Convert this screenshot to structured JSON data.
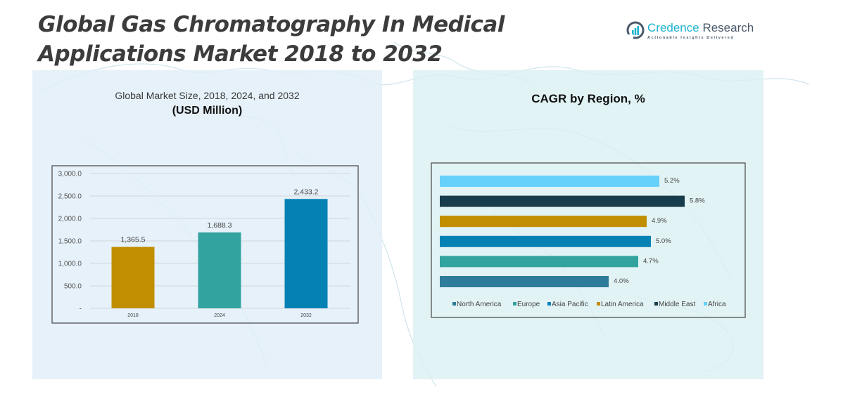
{
  "header": {
    "title_line1": "Global Gas Chromatography In Medical",
    "title_line2": "Applications Market 2018 to 2032",
    "logo_name_part1": "Credence",
    "logo_name_part2": " Research",
    "logo_tagline": "Actionable Insights Delivered"
  },
  "left_panel": {
    "subtitle": "Global Market Size, 2018, 2024, and 2032",
    "unit": "(USD Million)"
  },
  "right_panel": {
    "title": "CAGR by Region, %"
  },
  "colors": {
    "gold": "#c08e00",
    "teal": "#33a3a0",
    "blue": "#0581b4",
    "dark_navy": "#173c4c",
    "light_blue": "#66d1fa",
    "steel_blue": "#2e7c9a"
  },
  "chart_data": [
    {
      "type": "bar",
      "title": "Global Market Size, 2018, 2024, and 2032",
      "subtitle": "(USD Million)",
      "xlabel": "",
      "ylabel": "",
      "categories": [
        "2018",
        "2024",
        "2032"
      ],
      "values": [
        1365.5,
        1688.3,
        2433.2
      ],
      "data_labels": [
        "1,365.5",
        "1,688.3",
        "2,433.2"
      ],
      "bar_colors": [
        "#c08e00",
        "#33a3a0",
        "#0581b4"
      ],
      "ylim": [
        0,
        3000
      ],
      "yticks": [
        0,
        500,
        1000,
        1500,
        2000,
        2500,
        3000
      ],
      "ytick_labels": [
        "-",
        "500.0",
        "1,000.0",
        "1,500.0",
        "2,000.0",
        "2,500.0",
        "3,000.0"
      ],
      "grid": true,
      "legend": "none"
    },
    {
      "type": "bar",
      "orientation": "horizontal",
      "title": "CAGR by Region, %",
      "categories": [
        "North America",
        "Europe",
        "Asia Pacific",
        "Latin America",
        "Middle East",
        "Africa"
      ],
      "values": [
        4.0,
        4.7,
        5.0,
        4.9,
        5.8,
        5.2
      ],
      "data_labels": [
        "4.0%",
        "4.7%",
        "5.0%",
        "4.9%",
        "5.8%",
        "5.2%"
      ],
      "bar_colors": [
        "#2e7c9a",
        "#33a3a0",
        "#0581b4",
        "#c08e00",
        "#173c4c",
        "#66d1fa"
      ],
      "draw_order": "bottom-to-top",
      "xlim": [
        0,
        6.5
      ],
      "axes_visible": false,
      "grid": false,
      "legend": "bottom"
    }
  ]
}
